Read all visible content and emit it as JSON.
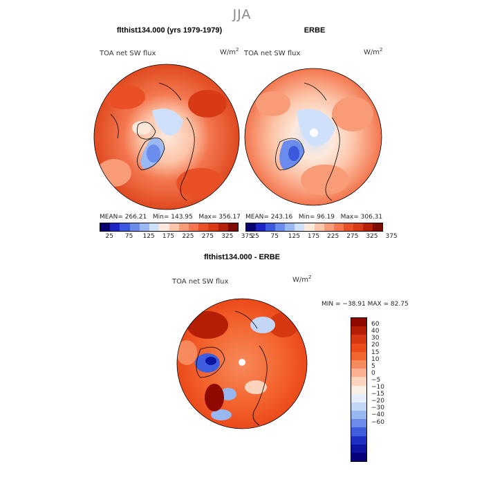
{
  "season": "JJA",
  "panels": {
    "model": {
      "title": "flthist134.000 (yrs 1979-1979)",
      "variable": "TOA net SW flux",
      "units": "W/m",
      "units_exp": "2",
      "mean_label": "MEAN=",
      "mean": "266.21",
      "min_label": "Min=",
      "min": "143.95",
      "max_label": "Max=",
      "max": "356.17"
    },
    "obs": {
      "title": "ERBE",
      "variable": "TOA net SW flux",
      "units": "W/m",
      "units_exp": "2",
      "mean_label": "MEAN=",
      "mean": "243.16",
      "min_label": "Min=",
      "min": "96.19",
      "max_label": "Max=",
      "max": "306.31"
    },
    "diff": {
      "title": "flthist134.000 - ERBE",
      "variable": "TOA net SW flux",
      "units": "W/m",
      "units_exp": "2",
      "stats": "MIN = −38.91 MAX =  82.75"
    }
  },
  "colorbar_top": {
    "labels": [
      "25",
      "75",
      "125",
      "175",
      "225",
      "275",
      "325",
      "375"
    ],
    "colors": [
      "#08006e",
      "#1c24c4",
      "#3c58dc",
      "#6a8cec",
      "#9ab8f4",
      "#cfe0fb",
      "#fde9dc",
      "#fcc4a8",
      "#f89c78",
      "#f3764e",
      "#ea5026",
      "#d73a14",
      "#b42008",
      "#7e0c02"
    ]
  },
  "colorbar_diff": {
    "labels": [
      "60",
      "40",
      "30",
      "20",
      "15",
      "10",
      "5",
      "0",
      "−5",
      "−10",
      "−15",
      "−20",
      "−30",
      "−40",
      "−60"
    ],
    "colors": [
      "#8e0a00",
      "#b41e04",
      "#d63812",
      "#ec4a1a",
      "#f3652f",
      "#f78a5c",
      "#fab091",
      "#fcd4bd",
      "#fbeee4",
      "#e6eefb",
      "#c3d6f6",
      "#98b6f0",
      "#6b8ce8",
      "#3e5edf",
      "#1c30c4",
      "#0c14a0",
      "#06007a"
    ]
  }
}
